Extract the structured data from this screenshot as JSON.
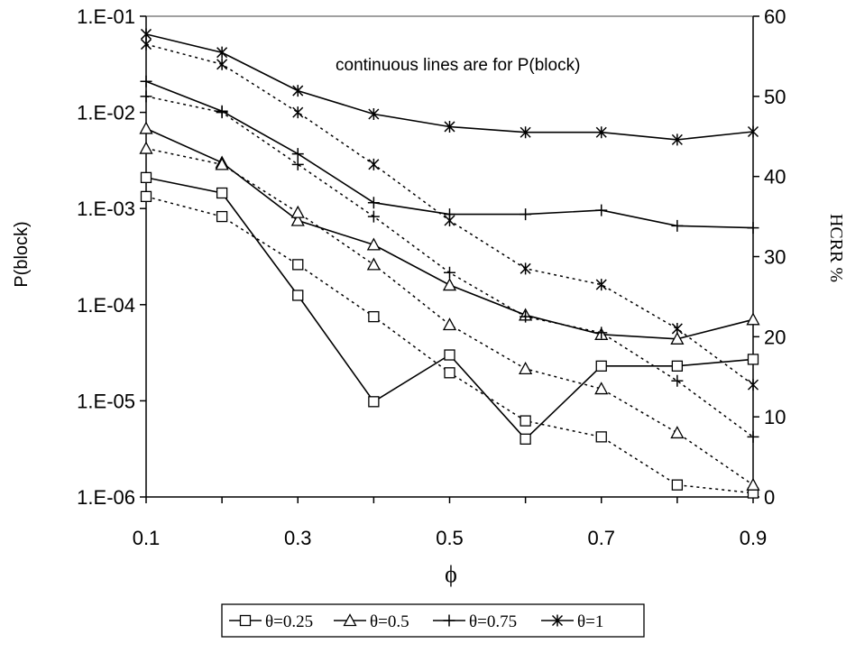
{
  "chart_data": {
    "type": "line",
    "annotation": "continuous lines are for P(block)",
    "xlabel": "ϕ",
    "ylabel_left": "P(block)",
    "ylabel_right": "HCRR %",
    "x": [
      0.1,
      0.2,
      0.3,
      0.4,
      0.5,
      0.6,
      0.7,
      0.8,
      0.9
    ],
    "x_ticks": [
      "0.1",
      "0.3",
      "0.5",
      "0.7",
      "0.9"
    ],
    "x_tick_values": [
      0.1,
      0.3,
      0.5,
      0.7,
      0.9
    ],
    "xlim": [
      0.1,
      0.9
    ],
    "y_left_scale": "log",
    "y_left_ticks": [
      "1.E-01",
      "1.E-02",
      "1.E-03",
      "1.E-04",
      "1.E-05",
      "1.E-06"
    ],
    "y_left_tick_exponents": [
      -1,
      -2,
      -3,
      -4,
      -5,
      -6
    ],
    "ylim_left": [
      1e-06,
      0.1
    ],
    "y_right_ticks": [
      "60",
      "50",
      "40",
      "30",
      "20",
      "10",
      "0"
    ],
    "y_right_tick_values": [
      60,
      50,
      40,
      30,
      20,
      10,
      0
    ],
    "ylim_right": [
      0,
      60
    ],
    "legend_position": "bottom",
    "grid": false,
    "series": [
      {
        "name": "θ=0.25",
        "marker": "square",
        "p_block": [
          0.0021,
          0.00145,
          0.000125,
          9.8e-06,
          3e-05,
          4e-06,
          2.3e-05,
          2.3e-05,
          2.7e-05
        ],
        "hcrr": [
          37.5,
          35.0,
          29.0,
          22.5,
          15.5,
          9.5,
          7.5,
          1.5,
          0.5
        ]
      },
      {
        "name": "θ=0.5",
        "marker": "triangle",
        "p_block": [
          0.0068,
          0.003,
          0.00075,
          0.00042,
          0.00016,
          7.8e-05,
          4.9e-05,
          4.4e-05,
          7e-05
        ],
        "hcrr": [
          43.5,
          41.5,
          35.5,
          29.0,
          21.5,
          16.0,
          13.5,
          8.0,
          1.5
        ]
      },
      {
        "name": "θ=0.75",
        "marker": "plus",
        "p_block": [
          0.021,
          0.0103,
          0.0037,
          0.00115,
          0.00087,
          0.00087,
          0.00096,
          0.00066,
          0.00063
        ],
        "hcrr": [
          50.0,
          48.0,
          41.5,
          35.0,
          28.0,
          22.5,
          20.5,
          14.5,
          7.5
        ]
      },
      {
        "name": "θ=1",
        "marker": "star",
        "p_block": [
          0.065,
          0.042,
          0.0168,
          0.0096,
          0.0071,
          0.0062,
          0.0062,
          0.0052,
          0.0063
        ],
        "hcrr": [
          56.5,
          54.0,
          48.0,
          41.5,
          34.5,
          28.5,
          26.5,
          21.0,
          14.0
        ]
      }
    ]
  }
}
